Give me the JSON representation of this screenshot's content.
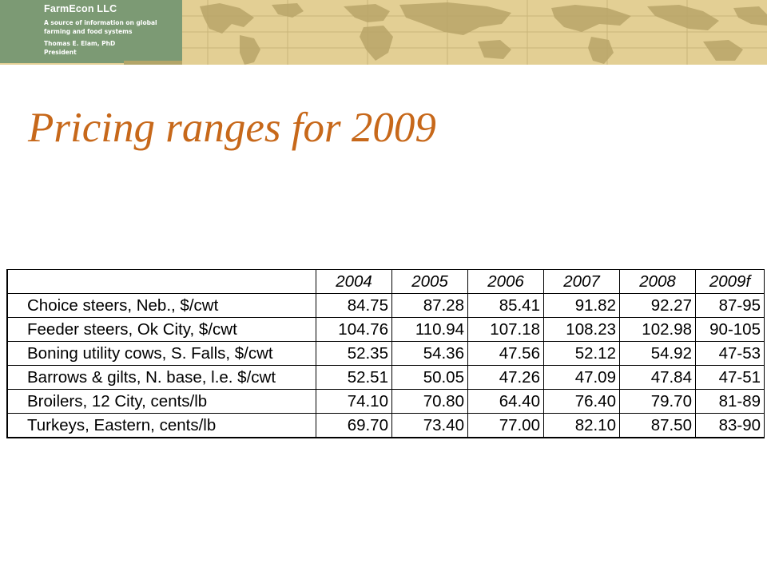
{
  "header": {
    "company": "FarmEcon LLC",
    "tagline_line1": "A source of information on global",
    "tagline_line2": "farming and food systems",
    "author": "Thomas E. Elam, PhD",
    "author_title": "President",
    "banner_color": "#e3cf94",
    "logo_box_color": "#7c9a74",
    "map_color": "#b9a569",
    "background_icon": "world-map"
  },
  "title": "Pricing ranges for 2009",
  "title_color": "#c7681a",
  "table": {
    "columns": [
      "",
      "2004",
      "2005",
      "2006",
      "2007",
      "2008",
      "2009f"
    ],
    "rows": [
      {
        "label": "Choice steers, Neb., $/cwt",
        "values": [
          "84.75",
          "87.28",
          "85.41",
          "91.82",
          "92.27",
          "87-95"
        ]
      },
      {
        "label": "Feeder steers, Ok City, $/cwt",
        "values": [
          "104.76",
          "110.94",
          "107.18",
          "108.23",
          "102.98",
          "90-105"
        ]
      },
      {
        "label": "Boning utility cows, S. Falls, $/cwt",
        "values": [
          "52.35",
          "54.36",
          "47.56",
          "52.12",
          "54.92",
          "47-53"
        ]
      },
      {
        "label": "Barrows & gilts, N. base, l.e. $/cwt",
        "values": [
          "52.51",
          "50.05",
          "47.26",
          "47.09",
          "47.84",
          "47-51"
        ]
      },
      {
        "label": "Broilers, 12 City, cents/lb",
        "values": [
          "74.10",
          "70.80",
          "64.40",
          "76.40",
          "79.70",
          "81-89"
        ]
      },
      {
        "label": "Turkeys, Eastern, cents/lb",
        "values": [
          "69.70",
          "73.40",
          "77.00",
          "82.10",
          "87.50",
          "83-90"
        ]
      }
    ]
  }
}
